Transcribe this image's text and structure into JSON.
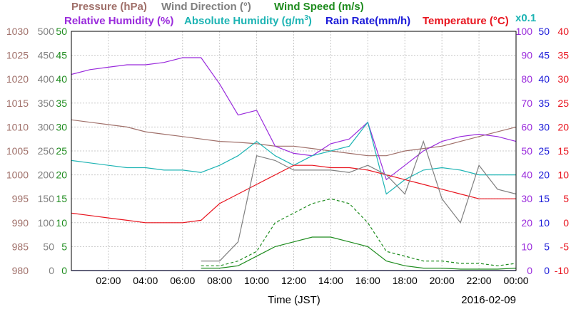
{
  "chart_data": {
    "type": "line",
    "date": "2016-02-09",
    "xlabel": "Time (JST)",
    "x_ticks": [
      "02:00",
      "04:00",
      "06:00",
      "08:00",
      "10:00",
      "12:00",
      "14:00",
      "16:00",
      "18:00",
      "20:00",
      "22:00",
      "00:00"
    ],
    "x": [
      "00:00",
      "01:00",
      "02:00",
      "03:00",
      "04:00",
      "05:00",
      "06:00",
      "07:00",
      "08:00",
      "09:00",
      "10:00",
      "11:00",
      "12:00",
      "13:00",
      "14:00",
      "15:00",
      "16:00",
      "17:00",
      "18:00",
      "19:00",
      "20:00",
      "21:00",
      "22:00",
      "23:00",
      "24:00"
    ],
    "axes": [
      {
        "name": "Pressure (hPa)",
        "color": "#a0706a",
        "side": "left",
        "min": 980,
        "max": 1030,
        "ticks": [
          "980",
          "985",
          "990",
          "995",
          "1000",
          "1005",
          "1010",
          "1015",
          "1020",
          "1025",
          "1030"
        ]
      },
      {
        "name": "Wind Direction (°)",
        "color": "#808080",
        "side": "left",
        "min": 0,
        "max": 500,
        "ticks": [
          "0",
          "50",
          "100",
          "150",
          "200",
          "250",
          "300",
          "350",
          "400",
          "450",
          "500"
        ]
      },
      {
        "name": "Wind Speed (m/s)",
        "color": "#1e8c1e",
        "side": "left",
        "min": 0,
        "max": 50,
        "ticks": [
          "0",
          "5",
          "10",
          "15",
          "20",
          "25",
          "30",
          "35",
          "40",
          "45",
          "50"
        ]
      },
      {
        "name": "Relative Humidity (%)",
        "color": "#9a2bdc",
        "side": "right",
        "min": 0,
        "max": 100,
        "ticks": [
          "0",
          "10",
          "20",
          "30",
          "40",
          "50",
          "60",
          "70",
          "80",
          "90",
          "100"
        ]
      },
      {
        "name": "Absolute Humidity (g/m3)",
        "color": "#1eb4b4",
        "side": "right",
        "scale_note": "x0.1",
        "min": 0,
        "max": 50,
        "ticks": []
      },
      {
        "name": "Rain Rate(mm/h)",
        "color": "#1a1ad8",
        "side": "right",
        "min": 0,
        "max": 50,
        "ticks": [
          "0",
          "5",
          "10",
          "15",
          "20",
          "25",
          "30",
          "35",
          "40",
          "45",
          "50"
        ]
      },
      {
        "name": "Temperature (°C)",
        "color": "#e8141e",
        "side": "right",
        "min": -10,
        "max": 40,
        "ticks": [
          "-10",
          "-5",
          "0",
          "5",
          "10",
          "15",
          "20",
          "25",
          "30",
          "35",
          "40"
        ]
      }
    ],
    "legend": {
      "pressure": "Pressure (hPa)",
      "wind_direction": "Wind Direction (°)",
      "wind_speed": "Wind Speed (m/s)",
      "relative_humidity": "Relative Humidity (%)",
      "absolute_humidity": "Absolute Humidity (g/m",
      "absolute_humidity_sup": "3",
      "absolute_humidity_tail": ")",
      "rain_rate": "Rain Rate(mm/h)",
      "temperature": "Temperature (°C)",
      "scale_note": "x0.1"
    },
    "series": [
      {
        "name": "Pressure (hPa)",
        "axis": 0,
        "color": "#a0706a",
        "values": [
          1011.5,
          1011,
          1010.5,
          1010,
          1009,
          1008.5,
          1008,
          1007.5,
          1007,
          1006.8,
          1006.5,
          1006,
          1006,
          1005.5,
          1005,
          1004.5,
          1004,
          1004,
          1005,
          1005.5,
          1006,
          1007,
          1008,
          1009,
          1010
        ]
      },
      {
        "name": "Relative Humidity (%)",
        "axis": 3,
        "color": "#9a2bdc",
        "values": [
          82,
          84,
          85,
          86,
          86,
          87,
          89,
          89,
          78,
          65,
          67,
          52,
          49,
          48,
          53,
          55,
          62,
          38,
          44,
          50,
          54,
          56,
          57,
          56,
          54
        ]
      },
      {
        "name": "Absolute Humidity (g/m3)",
        "axis": 4,
        "color": "#1eb4b4",
        "values": [
          23,
          22.5,
          22,
          21.5,
          21.5,
          21,
          21,
          20.5,
          22,
          24,
          27,
          24,
          22,
          24,
          25,
          26,
          31,
          16,
          19,
          21,
          21.5,
          21,
          20,
          20,
          20
        ]
      },
      {
        "name": "Temperature (°C)",
        "axis": 6,
        "color": "#e8141e",
        "values": [
          2,
          1.5,
          1,
          0.5,
          0,
          0,
          0,
          0.5,
          4,
          6,
          8,
          10,
          12,
          12,
          11.5,
          11.5,
          11,
          10,
          9,
          8,
          7,
          6,
          5,
          5,
          5
        ]
      },
      {
        "name": "Wind Direction (°)",
        "axis": 1,
        "color": "#808080",
        "values": [
          null,
          null,
          null,
          null,
          null,
          null,
          null,
          20,
          20,
          60,
          240,
          230,
          210,
          210,
          210,
          205,
          220,
          200,
          160,
          270,
          150,
          100,
          220,
          170,
          160
        ]
      },
      {
        "name": "Wind Speed (m/s)",
        "axis": 2,
        "color": "#1e8c1e",
        "values": [
          null,
          null,
          null,
          null,
          null,
          null,
          null,
          0.5,
          0.5,
          1,
          3,
          5,
          6,
          7,
          7,
          6,
          5,
          2,
          1,
          0.5,
          0.5,
          0.3,
          0.3,
          0.3,
          0.5
        ]
      },
      {
        "name": "Wind Speed (m/s)",
        "axis": 2,
        "color": "#1e8c1e",
        "style": "dashed",
        "values": [
          null,
          null,
          null,
          null,
          null,
          null,
          null,
          1,
          1,
          2,
          4,
          10,
          12,
          14,
          15,
          14,
          10,
          4,
          3,
          2,
          2,
          1.5,
          1.5,
          1,
          1.5
        ]
      },
      {
        "name": "Rain Rate(mm/h)",
        "axis": 5,
        "color": "#1a1ad8",
        "values": [
          0,
          0,
          0,
          0,
          0,
          0,
          0,
          0,
          0,
          0,
          0,
          0,
          0,
          0,
          0,
          0,
          0,
          0,
          0,
          0,
          0,
          0,
          0,
          0,
          0
        ]
      }
    ],
    "grid": true
  }
}
